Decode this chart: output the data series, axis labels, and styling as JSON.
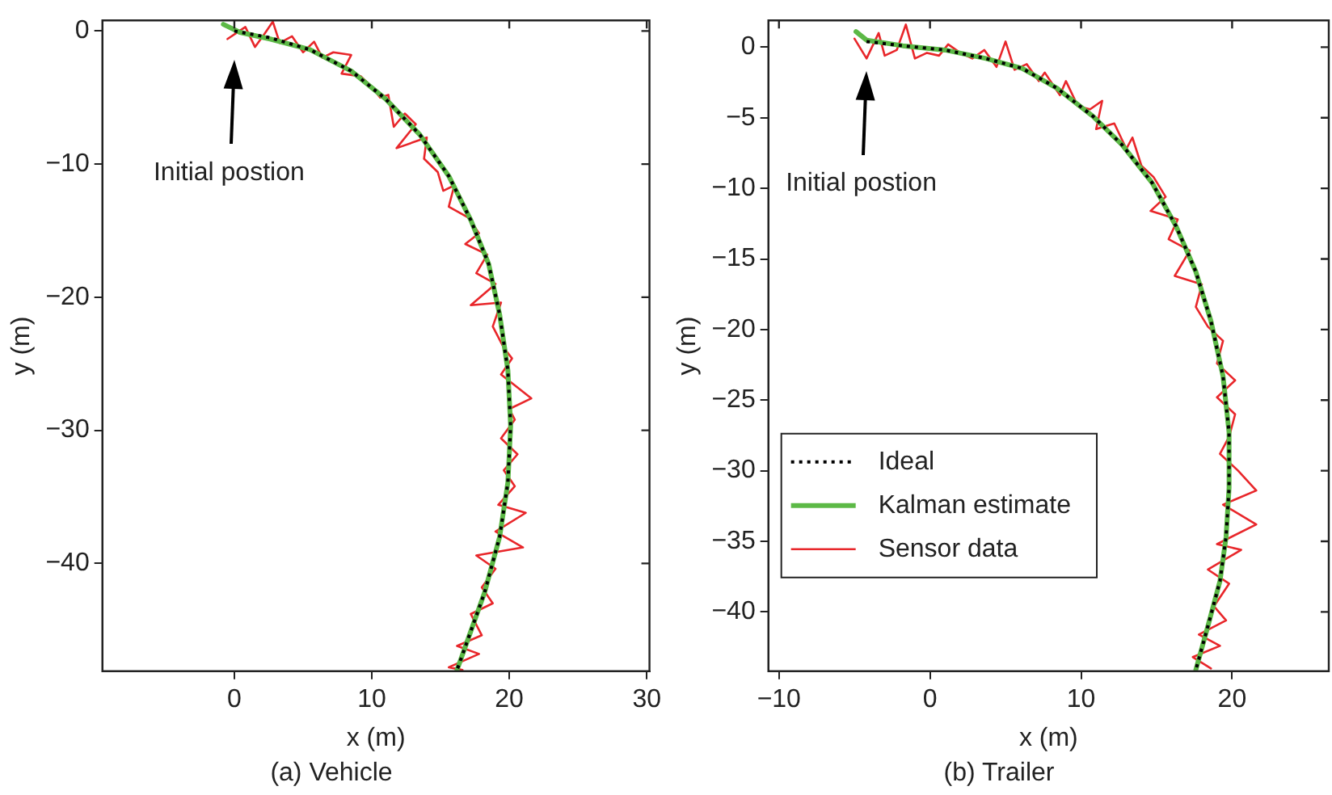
{
  "chart_data": [
    {
      "type": "line",
      "title": "(a) Vehicle",
      "xlabel": "x (m)",
      "ylabel": "y (m)",
      "xlim": [
        -9.6,
        30.2
      ],
      "ylim": [
        -48.1,
        0.8
      ],
      "xticks": [
        0,
        10,
        20,
        30
      ],
      "yticks": [
        -40,
        -30,
        -20,
        -10,
        0
      ],
      "grid": false,
      "legend": false,
      "annotations": [
        "Initial postion"
      ],
      "series": [
        {
          "color": "#000000",
          "line_style": "dotted",
          "x": [
            0,
            2.6,
            5.5,
            8.5,
            11,
            13.5,
            15.6,
            17.2,
            18.5,
            19.3,
            19.9,
            20.1,
            19.9,
            19.3,
            18.2,
            17.2,
            16.2
          ],
          "values": [
            0,
            -0.5,
            -1.4,
            -3,
            -5.1,
            -7.8,
            -10.9,
            -14.2,
            -17.5,
            -21.3,
            -25.5,
            -29.7,
            -33.9,
            -38,
            -42.2,
            -45.1,
            -48
          ]
        },
        {
          "color": "#5cb946",
          "line_style": "solid",
          "x": [
            -0.8,
            0.4,
            2.6,
            5.5,
            8.5,
            11,
            13.5,
            15.6,
            17.2,
            18.5,
            19.3,
            19.9,
            20.1,
            19.9,
            19.3,
            18.2,
            17.2,
            16.2
          ],
          "values": [
            0.5,
            -0.1,
            -0.6,
            -1.4,
            -3,
            -5.1,
            -7.8,
            -10.9,
            -14.2,
            -17.5,
            -21.3,
            -25.5,
            -29.7,
            -33.9,
            -38,
            -42.2,
            -45.1,
            -48
          ]
        },
        {
          "color": "#e8262a",
          "line_style": "solid",
          "x": [
            -0.5,
            0.8,
            1.5,
            2.2,
            2.8,
            3.3,
            4.2,
            5.0,
            5.8,
            6.4,
            7.2,
            8.5,
            7.8,
            9.2,
            10.0,
            10.6,
            11.2,
            11.6,
            12.4,
            13.2,
            11.8,
            14.0,
            13.8,
            14.8,
            15.2,
            16.0,
            15.6,
            17.0,
            17.8,
            16.8,
            18.4,
            17.6,
            19.0,
            17.2,
            19.4,
            18.8,
            19.6,
            20.2,
            19.4,
            21.6,
            20.0,
            20.4,
            19.4,
            20.6,
            19.6,
            20.4,
            19.2,
            21.2,
            19.0,
            21.0,
            17.6,
            19.0,
            18.0,
            18.8,
            17.2,
            18.0,
            16.2,
            17.8,
            15.6,
            16.6
          ],
          "values": [
            -0.6,
            0.3,
            -1.2,
            -0.2,
            0.7,
            -0.9,
            -0.4,
            -1.6,
            -0.8,
            -2.0,
            -1.6,
            -1.8,
            -3.2,
            -3.4,
            -4.2,
            -5.0,
            -4.8,
            -7.2,
            -6.2,
            -7.0,
            -8.8,
            -8.0,
            -9.6,
            -10.6,
            -12.0,
            -11.6,
            -13.2,
            -14.0,
            -15.2,
            -16.0,
            -16.8,
            -18.2,
            -19.0,
            -20.6,
            -20.4,
            -22.2,
            -23.8,
            -24.6,
            -25.8,
            -27.6,
            -28.4,
            -29.2,
            -30.6,
            -31.8,
            -33.0,
            -34.2,
            -35.6,
            -36.2,
            -37.6,
            -38.8,
            -39.4,
            -40.4,
            -41.8,
            -43.0,
            -43.8,
            -45.4,
            -46.2,
            -46.8,
            -47.8,
            -48.0
          ]
        }
      ]
    },
    {
      "type": "line",
      "title": "(b) Trailer",
      "xlabel": "x (m)",
      "ylabel": "y (m)",
      "xlim": [
        -10.7,
        26.4
      ],
      "ylim": [
        -44.2,
        1.9
      ],
      "xticks": [
        -10,
        0,
        10,
        20
      ],
      "yticks": [
        -40,
        -35,
        -30,
        -25,
        -20,
        -15,
        -10,
        -5,
        0
      ],
      "grid": false,
      "legend": "center left",
      "annotations": [
        "Initial postion"
      ],
      "series": [
        {
          "name": "Ideal",
          "color": "#000000",
          "line_style": "dotted",
          "x": [
            -4.2,
            -1.8,
            1,
            3.7,
            6.1,
            8.4,
            10.8,
            12.7,
            14.7,
            16.3,
            17.6,
            18.6,
            19.4,
            19.8,
            19.8,
            19.6,
            19.2,
            18.4,
            17.6
          ],
          "values": [
            0.4,
            0.1,
            -0.2,
            -0.8,
            -1.5,
            -2.9,
            -4.9,
            -6.9,
            -9.6,
            -12.7,
            -15.9,
            -19.4,
            -23.3,
            -27.3,
            -31.2,
            -34.7,
            -37.8,
            -41,
            -44.1
          ]
        },
        {
          "name": "Kalman estimate",
          "color": "#5cb946",
          "line_style": "solid",
          "x": [
            -4.9,
            -4.2,
            -1.8,
            1,
            3.7,
            6.1,
            8.4,
            10.8,
            12.7,
            14.7,
            16.3,
            17.6,
            18.6,
            19.4,
            19.8,
            19.8,
            19.6,
            19.2,
            18.4,
            17.6
          ],
          "values": [
            1.1,
            0.5,
            0.1,
            -0.2,
            -0.8,
            -1.5,
            -2.9,
            -4.9,
            -6.9,
            -9.6,
            -12.7,
            -15.9,
            -19.4,
            -23.3,
            -27.3,
            -31.2,
            -34.7,
            -37.8,
            -41,
            -44.1
          ]
        },
        {
          "name": "Sensor data",
          "color": "#e8262a",
          "line_style": "solid",
          "x": [
            -5.0,
            -4.2,
            -3.4,
            -3.0,
            -2.2,
            -1.6,
            -1.0,
            -0.2,
            0.6,
            1.2,
            2.0,
            2.8,
            3.6,
            4.4,
            5.0,
            5.6,
            6.4,
            7.2,
            7.6,
            8.6,
            9.0,
            9.8,
            10.6,
            11.4,
            11.0,
            12.2,
            13.0,
            13.4,
            14.0,
            14.8,
            15.6,
            14.6,
            16.4,
            15.8,
            17.2,
            16.2,
            18.0,
            17.6,
            18.4,
            19.4,
            19.0,
            20.2,
            19.0,
            20.2,
            19.8,
            19.2,
            20.4,
            21.6,
            19.4,
            21.6,
            19.0,
            20.6,
            18.4,
            19.8,
            18.8,
            19.6,
            17.8,
            19.2,
            17.4,
            18.6
          ],
          "values": [
            0.6,
            -0.8,
            1.0,
            -0.6,
            -0.2,
            1.6,
            -0.8,
            -0.4,
            -0.6,
            0.2,
            -0.4,
            -0.8,
            -0.2,
            -1.4,
            0.4,
            -1.6,
            -1.2,
            -2.4,
            -1.8,
            -3.4,
            -2.4,
            -4.2,
            -4.4,
            -3.8,
            -5.8,
            -5.4,
            -7.2,
            -6.4,
            -8.4,
            -9.2,
            -10.6,
            -11.6,
            -12.2,
            -13.6,
            -14.4,
            -16.2,
            -16.8,
            -18.4,
            -19.8,
            -20.8,
            -22.4,
            -23.6,
            -24.8,
            -26.0,
            -27.6,
            -28.8,
            -30.0,
            -31.4,
            -32.4,
            -33.8,
            -35.2,
            -35.6,
            -37.0,
            -38.0,
            -39.6,
            -40.6,
            -41.6,
            -42.4,
            -43.2,
            -44.0
          ]
        }
      ]
    }
  ]
}
